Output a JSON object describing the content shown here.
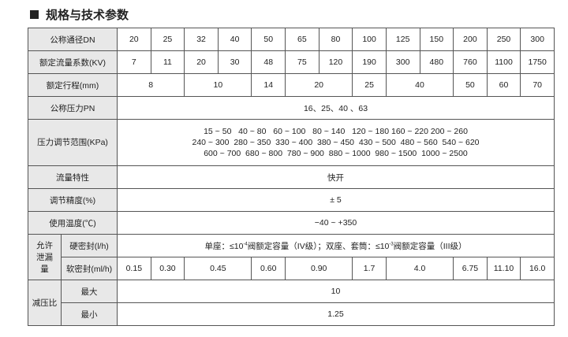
{
  "title": "规格与技术参数",
  "rows": {
    "dn": {
      "label": "公称通径DN",
      "values": [
        "20",
        "25",
        "32",
        "40",
        "50",
        "65",
        "80",
        "100",
        "125",
        "150",
        "200",
        "250",
        "300"
      ]
    },
    "kv": {
      "label": "额定流量系数(KV)",
      "values": [
        "7",
        "11",
        "20",
        "30",
        "48",
        "75",
        "120",
        "190",
        "300",
        "480",
        "760",
        "1100",
        "1750"
      ]
    },
    "stroke": {
      "label": "额定行程(mm)",
      "values": [
        "8",
        "10",
        "14",
        "20",
        "25",
        "40",
        "50",
        "60",
        "70"
      ]
    },
    "pn": {
      "label": "公称压力PN",
      "value": "16、25、40 、63"
    },
    "range": {
      "label": "压力调节范围(KPa)",
      "lines": [
        "15 ~ 50   40 ~ 80   60 ~ 100   80 ~ 140   120 ~ 180 160 ~ 220 200 ~ 260",
        "240 ~ 300  280 ~ 350  330 ~ 400  380 ~ 450  430 ~ 500  480 ~ 560  540 ~ 620",
        "600 ~ 700  680 ~ 800  780 ~ 900  880 ~ 1000  980 ~ 1500  1000 ~ 2500"
      ]
    },
    "flow": {
      "label": "流量特性",
      "value": "快开"
    },
    "accuracy": {
      "label": "调节精度(%)",
      "value": "± 5"
    },
    "temp": {
      "label": "使用温度(℃)",
      "value": "−40 ~ +350"
    },
    "leak": {
      "label": "允许泄漏量",
      "hard": {
        "label": "硬密封(l/h)",
        "p1": "单座：≤10",
        "e1": "-4",
        "p2": "阀额定容量（IV级）；双座、套筒：≤10",
        "e2": "-3",
        "p3": "阀额定容量（III级）"
      },
      "soft": {
        "label": "软密封(ml/h)",
        "values": [
          "0.15",
          "0.30",
          "0.45",
          "0.60",
          "0.90",
          "1.7",
          "4.0",
          "6.75",
          "11.10",
          "16.0"
        ]
      }
    },
    "ratio": {
      "label": "减压比",
      "max_label": "最大",
      "max": "10",
      "min_label": "最小",
      "min": "1.25"
    }
  }
}
